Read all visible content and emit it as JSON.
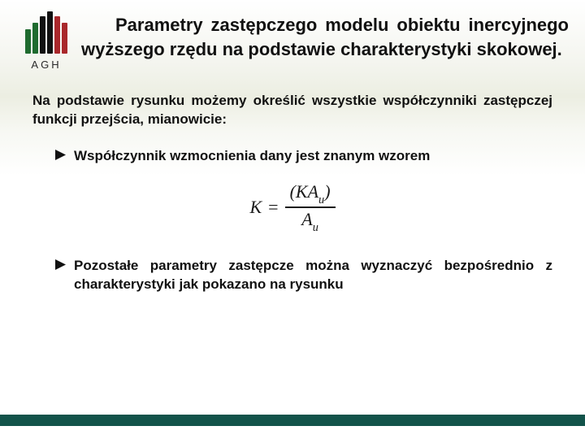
{
  "logo": {
    "label": "AGH",
    "bars": [
      {
        "color": "#1f6b2f",
        "height": 30
      },
      {
        "color": "#1f6b2f",
        "height": 38
      },
      {
        "color": "#111111",
        "height": 46
      },
      {
        "color": "#111111",
        "height": 52
      },
      {
        "color": "#a9272b",
        "height": 46
      },
      {
        "color": "#a9272b",
        "height": 38
      }
    ]
  },
  "title": "Parametry zastępczego modelu obiektu inercyjnego wyższego rzędu na podstawie charakterystyki skokowej.",
  "intro": "Na podstawie rysunku możemy określić wszystkie współczyn­niki zastępczej funkcji przejścia, mianowicie:",
  "bullets": {
    "b1": "Współczynnik wzmocnienia dany jest znanym wzorem",
    "b2": "Pozostałe parametry zastępcze można wyznaczyć bez­pośrednio z charakterystyki jak pokazano na rysunku"
  },
  "formula": {
    "lhs": "K",
    "eq": "=",
    "num_open": "(",
    "num_k": "K",
    "num_a": "A",
    "num_sub": "u",
    "num_close": ")",
    "den_a": "A",
    "den_sub": "u"
  },
  "colors": {
    "footer": "#12534a"
  }
}
